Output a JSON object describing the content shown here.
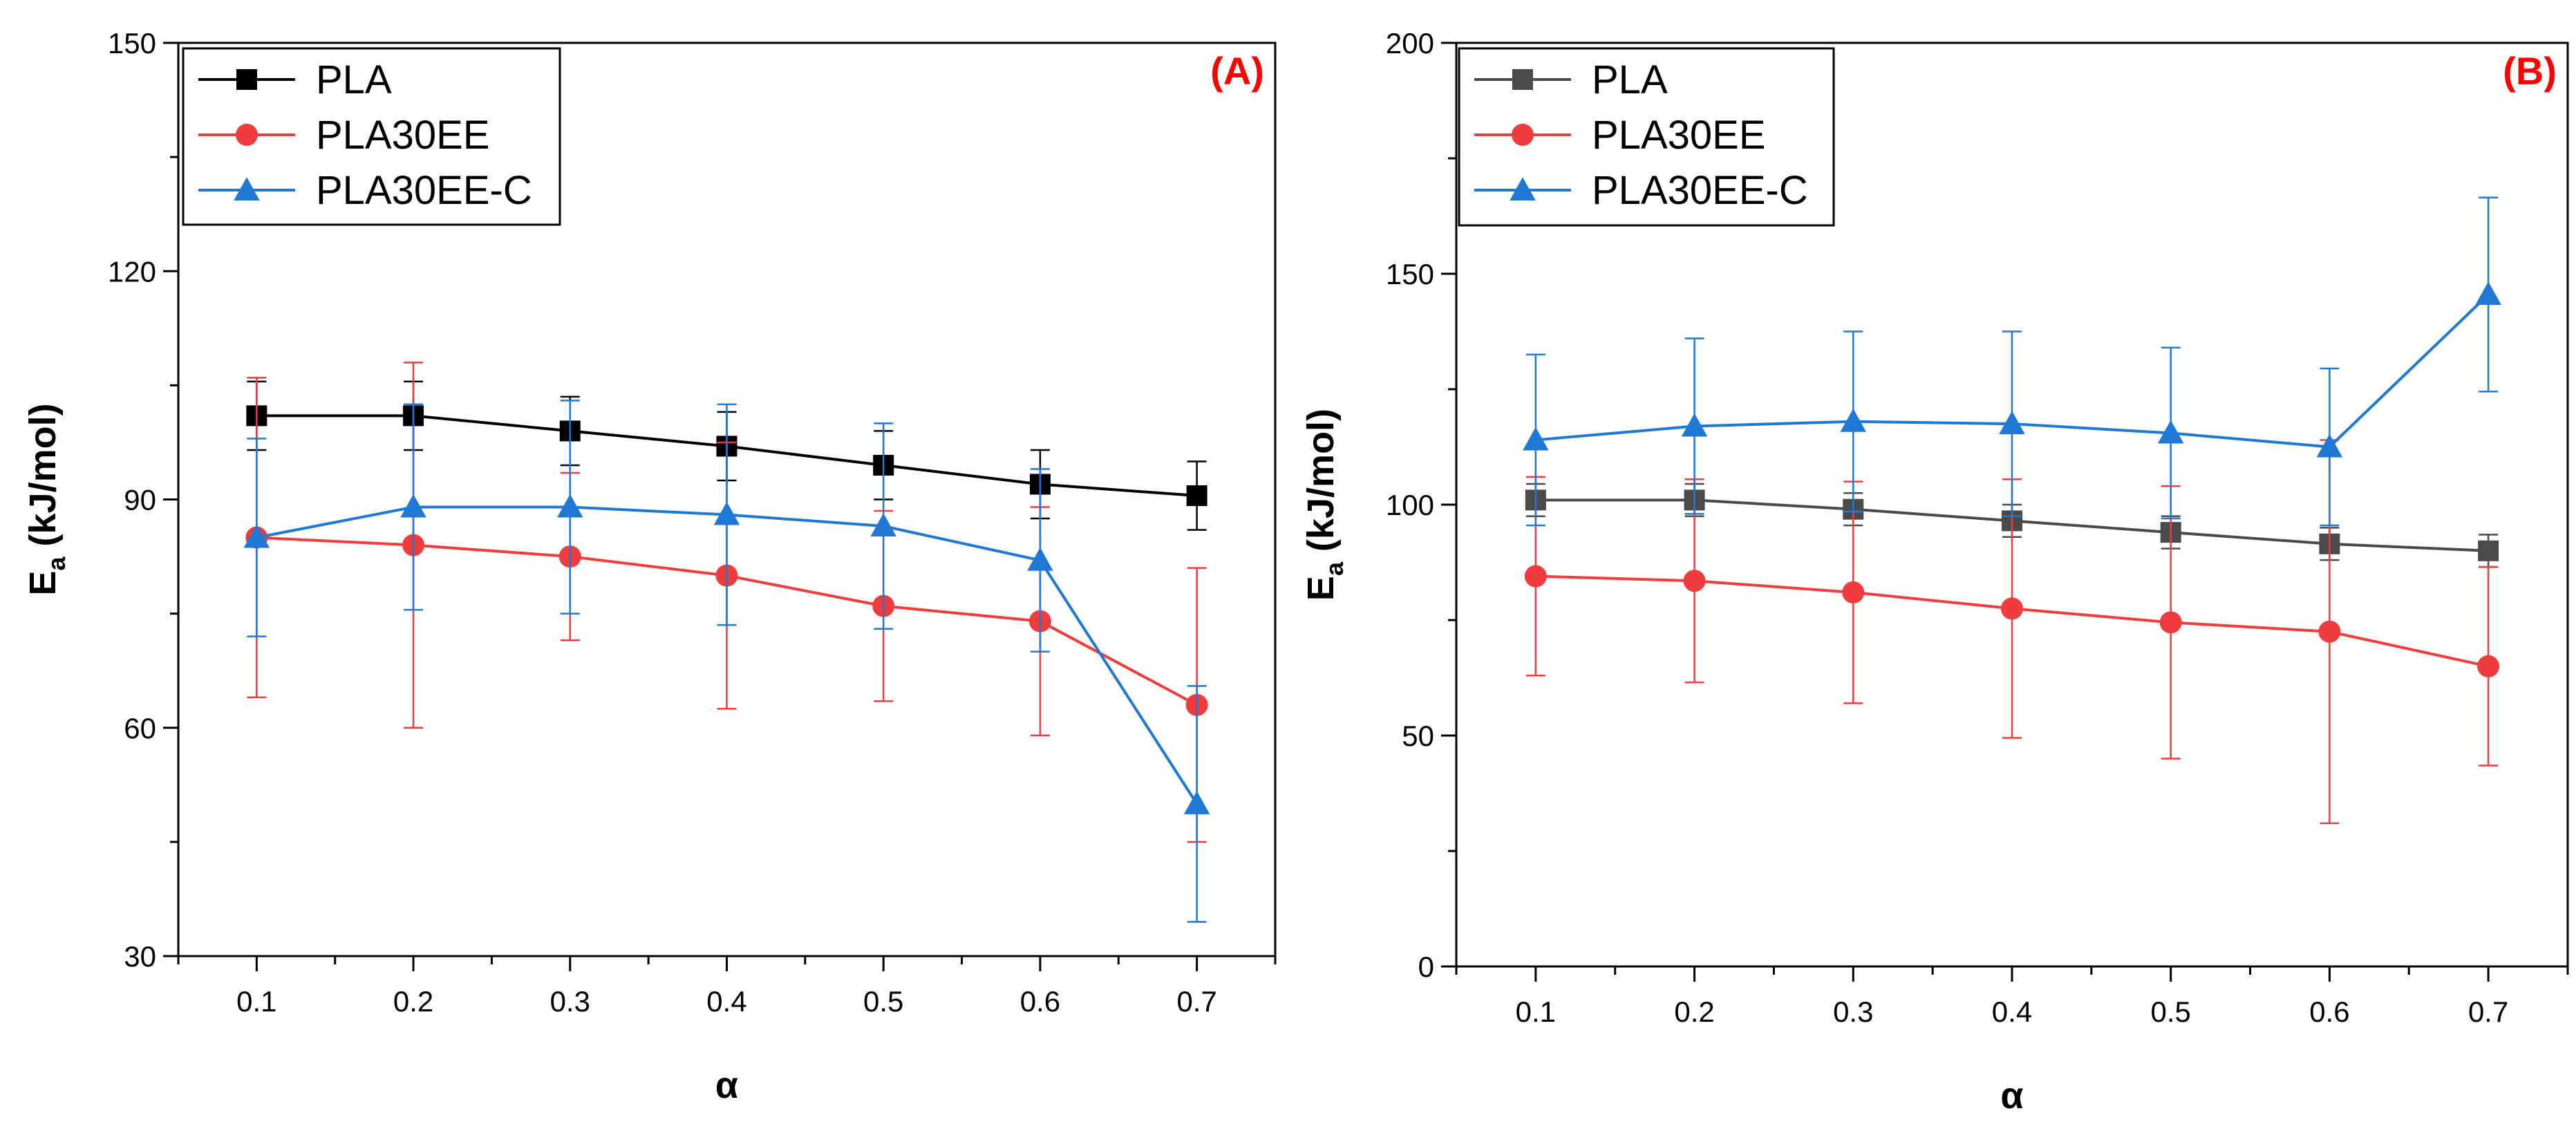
{
  "chart_data": [
    {
      "type": "line",
      "panel_label": "(A)",
      "panel_label_color": "#ff0000",
      "xlabel": "α",
      "ylabel_main": "E",
      "ylabel_sub": "a",
      "ylabel_rest": " (kJ/mol)",
      "x": [
        0.1,
        0.2,
        0.3,
        0.4,
        0.5,
        0.6,
        0.7
      ],
      "x_tick_labels": [
        "0.1",
        "0.2",
        "0.3",
        "0.4",
        "0.5",
        "0.6",
        "0.7"
      ],
      "xlim": [
        0.05,
        0.75
      ],
      "ylim": [
        30,
        150
      ],
      "y_ticks": [
        30,
        60,
        90,
        120,
        150
      ],
      "y_tick_labels": [
        "30",
        "60",
        "90",
        "120",
        "150"
      ],
      "legend_position": "top-left",
      "series": [
        {
          "name": "PLA",
          "color": "#000000",
          "marker": "square",
          "values": [
            101,
            101,
            99,
            97,
            94.5,
            92,
            90.5
          ],
          "errors": [
            4.5,
            4.5,
            4.5,
            4.5,
            4.5,
            4.5,
            4.5
          ]
        },
        {
          "name": "PLA30EE",
          "color": "#f03c3c",
          "marker": "circle",
          "values": [
            85,
            84,
            82.5,
            80,
            76,
            74,
            63
          ],
          "errors": [
            21,
            24,
            11,
            17.5,
            12.5,
            15,
            18
          ]
        },
        {
          "name": "PLA30EE-C",
          "color": "#1f78d4",
          "marker": "triangle",
          "values": [
            85,
            89,
            89,
            88,
            86.5,
            82,
            50
          ],
          "errors": [
            13,
            13.5,
            14,
            14.5,
            13.5,
            12,
            15.5
          ]
        }
      ]
    },
    {
      "type": "line",
      "panel_label": "(B)",
      "panel_label_color": "#ff0000",
      "xlabel": "α",
      "ylabel_main": "E",
      "ylabel_sub": "a",
      "ylabel_rest": " (kJ/mol)",
      "x": [
        0.1,
        0.2,
        0.3,
        0.4,
        0.5,
        0.6,
        0.7
      ],
      "x_tick_labels": [
        "0.1",
        "0.2",
        "0.3",
        "0.4",
        "0.5",
        "0.6",
        "0.7"
      ],
      "xlim": [
        0.05,
        0.75
      ],
      "ylim": [
        0,
        200
      ],
      "y_ticks": [
        0,
        50,
        100,
        150,
        200
      ],
      "y_tick_labels": [
        "0",
        "50",
        "100",
        "150",
        "200"
      ],
      "legend_position": "top-left",
      "series": [
        {
          "name": "PLA",
          "color": "#4a4a4a",
          "marker": "square",
          "values": [
            101,
            101,
            99,
            96.5,
            94,
            91.5,
            90
          ],
          "errors": [
            3.5,
            3.5,
            3.5,
            3.5,
            3.5,
            3.5,
            3.5
          ]
        },
        {
          "name": "PLA30EE",
          "color": "#f03c3c",
          "marker": "circle",
          "values": [
            84.5,
            83.5,
            81,
            77.5,
            74.5,
            72.5,
            65
          ],
          "errors": [
            21.5,
            22,
            24,
            28,
            29.5,
            41.5,
            21.5
          ]
        },
        {
          "name": "PLA30EE-C",
          "color": "#1f78d4",
          "marker": "triangle",
          "values": [
            114,
            117,
            118,
            117.5,
            115.5,
            112.5,
            145.5
          ],
          "errors": [
            18.5,
            19,
            19.5,
            20,
            18.5,
            17,
            21
          ]
        }
      ]
    }
  ]
}
